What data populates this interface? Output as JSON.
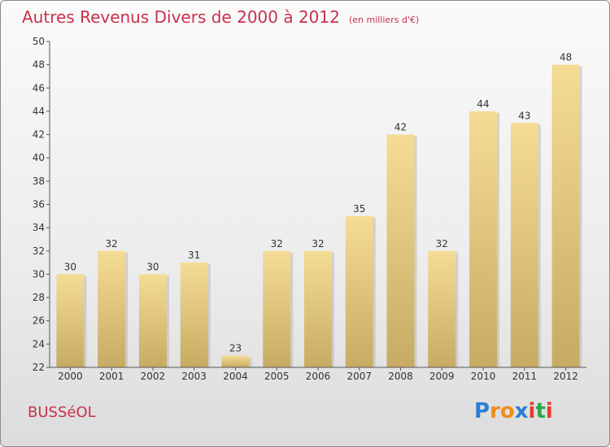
{
  "title": "Autres Revenus Divers de 2000 à 2012",
  "unit_note": "(en milliers d'€)",
  "location": "BUSSéOL",
  "logo": {
    "text": "Proxiti",
    "letters": [
      {
        "ch": "P",
        "color": "#2a7fd4"
      },
      {
        "ch": "r",
        "color": "#f08c1a"
      },
      {
        "ch": "o",
        "color": "#f08c1a"
      },
      {
        "ch": "x",
        "color": "#2a7fd4"
      },
      {
        "ch": "i",
        "color": "#e63b2e"
      },
      {
        "ch": "t",
        "color": "#2aa84a"
      },
      {
        "ch": "i",
        "color": "#e63b2e"
      }
    ]
  },
  "chart_data": {
    "type": "bar",
    "categories": [
      "2000",
      "2001",
      "2002",
      "2003",
      "2004",
      "2005",
      "2006",
      "2007",
      "2008",
      "2009",
      "2010",
      "2011",
      "2012"
    ],
    "values": [
      30,
      32,
      30,
      31,
      23,
      32,
      32,
      35,
      42,
      32,
      44,
      43,
      48
    ],
    "ylim": [
      22,
      50
    ],
    "yticks": [
      22,
      24,
      26,
      28,
      30,
      32,
      34,
      36,
      38,
      40,
      42,
      44,
      46,
      48,
      50
    ],
    "grid": false,
    "bar_color_top": "#f5dc94",
    "bar_color_bottom": "#c7ab63"
  }
}
